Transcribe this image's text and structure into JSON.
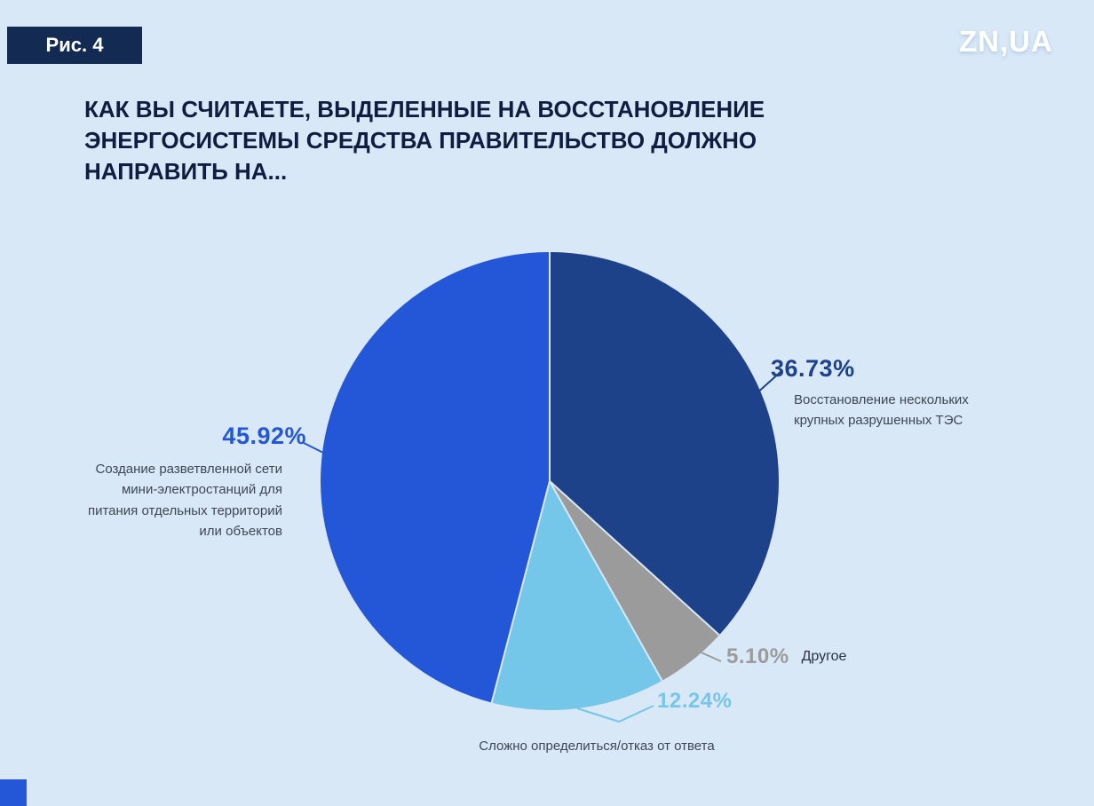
{
  "badge": {
    "label": "Рис. 4"
  },
  "logo": {
    "text": "ZN,UA"
  },
  "title": "КАК ВЫ СЧИТАЕТЕ, ВЫДЕЛЕННЫЕ НА ВОССТАНОВЛЕНИЕ ЭНЕРГОСИСТЕМЫ СРЕДСТВА ПРАВИТЕЛЬСТВО ДОЛЖНО НАПРАВИТЬ НА...",
  "colors": {
    "background": "#d9e8f7",
    "badge_background": "#132b52",
    "title_text": "#111d40",
    "accent_square": "#2456d8"
  },
  "chart_data": {
    "type": "pie",
    "title": "КАК ВЫ СЧИТАЕТЕ, ВЫДЕЛЕННЫЕ НА ВОССТАНОВЛЕНИЕ ЭНЕРГОСИСТЕМЫ СРЕДСТВА ПРАВИТЕЛЬСТВО ДОЛЖНО НАПРАВИТЬ НА...",
    "start_angle_deg": 0,
    "direction": "clockwise",
    "legend_position": "around",
    "slices": [
      {
        "label": "Восстановление нескольких крупных разрушенных ТЭС",
        "value": 36.73,
        "display": "36.73%",
        "color": "#1d4289"
      },
      {
        "label": "Другое",
        "value": 5.1,
        "display": "5.10%",
        "color": "#9b9b9b"
      },
      {
        "label": "Сложно определиться/отказ от ответа",
        "value": 12.24,
        "display": "12.24%",
        "color": "#74c7e9"
      },
      {
        "label": "Создание разветвленной сети мини-электростанций для питания отдельных территорий или объектов",
        "value": 45.92,
        "display": "45.92%",
        "color": "#2456d8"
      }
    ]
  }
}
